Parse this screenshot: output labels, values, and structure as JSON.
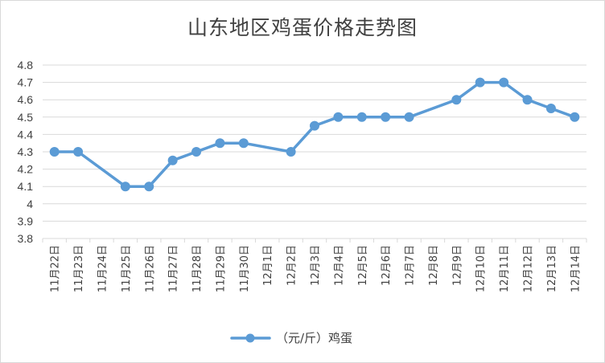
{
  "chart_data": {
    "type": "line",
    "title": "山东地区鸡蛋价格走势图",
    "xlabel": "",
    "ylabel": "",
    "ylim": [
      3.8,
      4.8
    ],
    "y_ticks": [
      "4.8",
      "4.7",
      "4.6",
      "4.5",
      "4.4",
      "4.3",
      "4.2",
      "4.1",
      "4",
      "3.9",
      "3.8"
    ],
    "grid": true,
    "legend_position": "bottom",
    "categories": [
      "11月22日",
      "11月23日",
      "11月24日",
      "11月25日",
      "11月26日",
      "11月27日",
      "11月28日",
      "11月29日",
      "11月30日",
      "12月1日",
      "12月2日",
      "12月3日",
      "12月4日",
      "12月5日",
      "12月6日",
      "12月7日",
      "12月8日",
      "12月9日",
      "12月10日",
      "12月11日",
      "12月12日",
      "12月13日",
      "12月14日"
    ],
    "series": [
      {
        "name": "（元/斤）鸡蛋",
        "color": "#5b9bd5",
        "values": [
          4.3,
          4.3,
          null,
          4.1,
          4.1,
          4.25,
          4.3,
          4.35,
          4.35,
          null,
          4.3,
          4.45,
          4.5,
          4.5,
          4.5,
          4.5,
          null,
          4.6,
          4.7,
          4.7,
          4.6,
          4.55,
          4.5
        ]
      }
    ]
  }
}
